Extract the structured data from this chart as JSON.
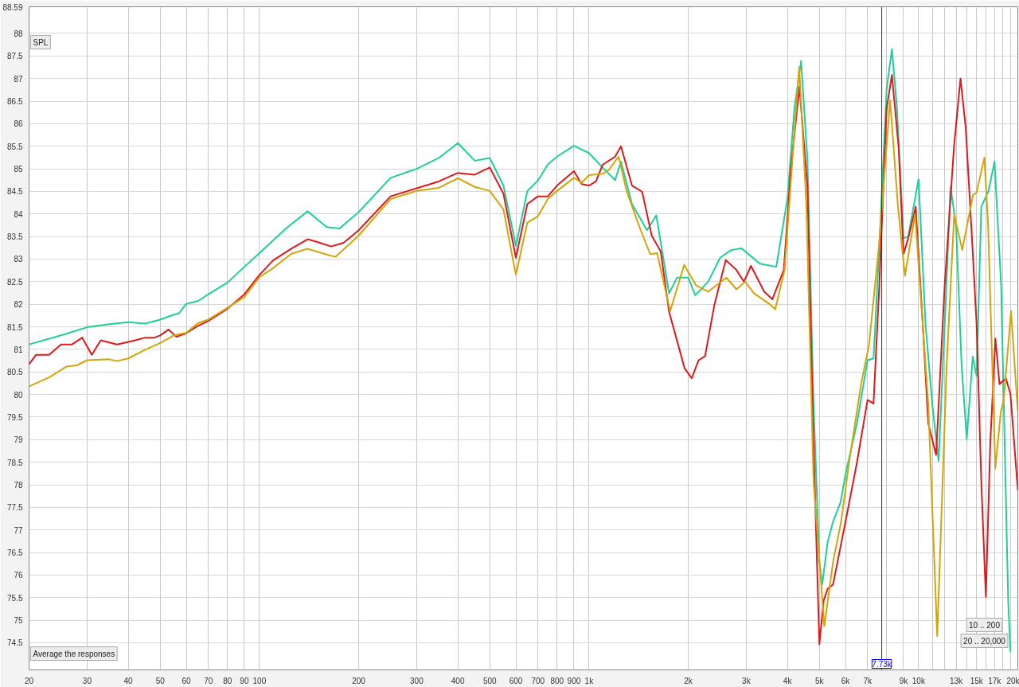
{
  "chart_data": {
    "type": "line",
    "xlim": [
      20,
      20000
    ],
    "ylim": [
      73.9,
      88.59
    ],
    "log": "x",
    "grid": true,
    "marker": "none",
    "line_style": "solid",
    "xticks": [
      20,
      30,
      40,
      50,
      60,
      70,
      80,
      90,
      100,
      200,
      300,
      400,
      500,
      600,
      700,
      800,
      900,
      {
        "value": 1000,
        "label": "1k"
      },
      {
        "value": 2000,
        "label": "2k"
      },
      {
        "value": 3000,
        "label": "3k"
      },
      {
        "value": 4000,
        "label": "4k"
      },
      {
        "value": 5000,
        "label": "5k"
      },
      {
        "value": 6000,
        "label": "6k"
      },
      {
        "value": 7000,
        "label": "7k"
      },
      {
        "value": 8000,
        "label": null
      },
      {
        "value": 9000,
        "label": "9k"
      },
      {
        "value": 10000,
        "label": "10k"
      },
      {
        "value": 11000,
        "label": null
      },
      {
        "value": 12000,
        "label": null
      },
      {
        "value": 13000,
        "label": "13k"
      },
      {
        "value": 14000,
        "label": null
      },
      {
        "value": 15000,
        "label": "15k"
      },
      {
        "value": 16000,
        "label": null
      },
      {
        "value": 17000,
        "label": "17k"
      },
      {
        "value": 18000,
        "label": null
      },
      {
        "value": 19000,
        "label": null
      },
      {
        "value": 20000,
        "label": "20k"
      }
    ],
    "yticks": [
      74.5,
      75,
      75.5,
      76,
      76.5,
      77,
      77.5,
      78,
      78.5,
      79,
      79.5,
      80,
      80.5,
      81,
      81.5,
      82,
      82.5,
      83,
      83.5,
      84,
      84.5,
      85,
      85.5,
      86,
      86.5,
      87,
      87.5,
      88,
      88.59
    ],
    "ref_lines": [
      {
        "axis": "x",
        "value": 7730,
        "label": "7.73k",
        "color": "#333333"
      }
    ],
    "annotations": [
      "SPL",
      "Average the responses",
      "10 .. 200",
      "20 .. 20,000"
    ],
    "series": [
      {
        "color": "#1ecf9a",
        "x": [
          20,
          25,
          30,
          35,
          40,
          45,
          50,
          55,
          57,
          60,
          65,
          70,
          80,
          90,
          100,
          120,
          140,
          160,
          175,
          200,
          250,
          300,
          350,
          400,
          450,
          500,
          550,
          600,
          650,
          700,
          750,
          800,
          900,
          1000,
          1100,
          1200,
          1250,
          1350,
          1500,
          1600,
          1750,
          1850,
          2000,
          2100,
          2300,
          2500,
          2700,
          2900,
          3300,
          3700,
          4000,
          4200,
          4400,
          4600,
          4800,
          5000,
          5100,
          5300,
          5500,
          5800,
          6000,
          6500,
          7000,
          7300,
          7600,
          8000,
          8300,
          8600,
          9000,
          9300,
          10000,
          10500,
          11000,
          11500,
          12000,
          12500,
          13000,
          13500,
          14000,
          14600,
          15000,
          15500,
          16300,
          17000,
          17800,
          18700,
          19000
        ],
        "values": [
          81.11,
          81.31,
          81.49,
          81.56,
          81.6,
          81.57,
          81.66,
          81.77,
          81.8,
          82.01,
          82.07,
          82.22,
          82.48,
          82.83,
          83.13,
          83.67,
          84.06,
          83.71,
          83.68,
          84.04,
          84.8,
          85.0,
          85.24,
          85.57,
          85.18,
          85.24,
          84.63,
          83.29,
          84.51,
          84.74,
          85.1,
          85.27,
          85.51,
          85.35,
          85.03,
          84.75,
          85.16,
          84.22,
          83.64,
          83.97,
          82.24,
          82.59,
          82.59,
          82.2,
          82.5,
          83.03,
          83.2,
          83.24,
          82.9,
          82.83,
          84.34,
          86.34,
          87.39,
          85.21,
          79.8,
          76.31,
          75.79,
          76.74,
          77.18,
          77.62,
          78.23,
          79.36,
          80.76,
          80.8,
          83.29,
          86.78,
          87.65,
          86.34,
          83.46,
          83.5,
          84.77,
          81.54,
          79.8,
          78.53,
          81.54,
          84.6,
          83.72,
          80.67,
          79.01,
          80.84,
          80.41,
          84.16,
          84.51,
          85.16,
          82.42,
          75.43,
          74.3
        ]
      },
      {
        "color": "#e0191d",
        "x": [
          20,
          21,
          23,
          25,
          27,
          29,
          31,
          33,
          37,
          42,
          45,
          48,
          50,
          53,
          56,
          60,
          65,
          70,
          80,
          90,
          100,
          110,
          125,
          140,
          150,
          165,
          180,
          200,
          250,
          300,
          350,
          400,
          450,
          500,
          550,
          600,
          650,
          700,
          750,
          800,
          900,
          950,
          1000,
          1050,
          1100,
          1200,
          1250,
          1350,
          1450,
          1550,
          1650,
          1750,
          1850,
          1950,
          2050,
          2150,
          2250,
          2400,
          2600,
          2800,
          2950,
          3100,
          3400,
          3600,
          3900,
          4100,
          4350,
          4600,
          4800,
          5000,
          5150,
          5300,
          5500,
          6000,
          6500,
          7000,
          7300,
          7600,
          8000,
          8300,
          8700,
          9000,
          9300,
          9800,
          10300,
          10700,
          11300,
          12000,
          12800,
          13400,
          13900,
          14500,
          15000,
          15500,
          16000,
          16500,
          17100,
          17600,
          18400,
          19000,
          20000
        ],
        "values": [
          80.67,
          80.88,
          80.88,
          81.11,
          81.11,
          81.26,
          80.88,
          81.2,
          81.11,
          81.2,
          81.26,
          81.26,
          81.31,
          81.44,
          81.28,
          81.36,
          81.52,
          81.63,
          81.9,
          82.22,
          82.65,
          82.97,
          83.23,
          83.44,
          83.38,
          83.28,
          83.36,
          83.64,
          84.39,
          84.57,
          84.72,
          84.91,
          84.87,
          85.03,
          84.45,
          83.03,
          84.22,
          84.39,
          84.39,
          84.63,
          84.95,
          84.66,
          84.63,
          84.72,
          85.09,
          85.27,
          85.5,
          84.63,
          84.49,
          83.52,
          83.17,
          81.83,
          81.19,
          80.58,
          80.36,
          80.76,
          80.85,
          81.98,
          82.98,
          82.76,
          82.5,
          82.85,
          82.28,
          82.11,
          82.76,
          85.03,
          86.82,
          84.6,
          78.92,
          74.47,
          75.43,
          75.7,
          75.79,
          77.18,
          78.49,
          79.88,
          79.8,
          82.42,
          86.34,
          87.08,
          85.47,
          83.11,
          83.46,
          84.16,
          81.54,
          79.36,
          78.66,
          82.42,
          85.47,
          87.0,
          85.91,
          83.55,
          81.54,
          78.05,
          75.52,
          78.92,
          81.24,
          80.23,
          80.36,
          80.01,
          77.88
        ]
      },
      {
        "color": "#d4a50a",
        "x": [
          20,
          23,
          26,
          28,
          30,
          35,
          37,
          40,
          45,
          50,
          55,
          60,
          65,
          70,
          80,
          90,
          100,
          110,
          125,
          140,
          160,
          170,
          200,
          250,
          300,
          350,
          400,
          450,
          500,
          550,
          600,
          650,
          700,
          750,
          800,
          900,
          950,
          1000,
          1100,
          1150,
          1230,
          1300,
          1428,
          1533,
          1609,
          1763,
          1944,
          2116,
          2301,
          2611,
          2801,
          2980,
          3169,
          3509,
          3674,
          3921,
          4208,
          4343,
          4567,
          4802,
          5176,
          5506,
          5820,
          6153,
          6692,
          7076,
          7581,
          8197,
          8658,
          9089,
          9758,
          10696,
          11389,
          12172,
          12823,
          13568,
          14624,
          14986,
          15839,
          16260,
          17093,
          17761,
          18131,
          19072,
          20000
        ],
        "values": [
          80.18,
          80.38,
          80.62,
          80.65,
          80.76,
          80.78,
          80.74,
          80.8,
          80.99,
          81.14,
          81.31,
          81.37,
          81.58,
          81.66,
          81.92,
          82.16,
          82.6,
          82.8,
          83.12,
          83.23,
          83.1,
          83.05,
          83.52,
          84.33,
          84.51,
          84.58,
          84.79,
          84.6,
          84.51,
          84.1,
          82.65,
          83.81,
          83.95,
          84.33,
          84.51,
          84.8,
          84.69,
          84.86,
          84.89,
          84.98,
          85.27,
          84.51,
          83.68,
          83.11,
          83.13,
          81.85,
          82.87,
          82.41,
          82.28,
          82.59,
          82.33,
          82.5,
          82.24,
          82.02,
          81.89,
          82.76,
          85.91,
          87.26,
          84.16,
          78.05,
          74.87,
          76.31,
          77.18,
          78.49,
          80.23,
          81.11,
          83.29,
          86.52,
          84.16,
          82.63,
          83.99,
          79.8,
          74.65,
          80.67,
          83.99,
          83.2,
          84.42,
          84.47,
          85.25,
          83.72,
          78.36,
          79.62,
          79.88,
          81.85,
          79.62
        ]
      }
    ]
  }
}
